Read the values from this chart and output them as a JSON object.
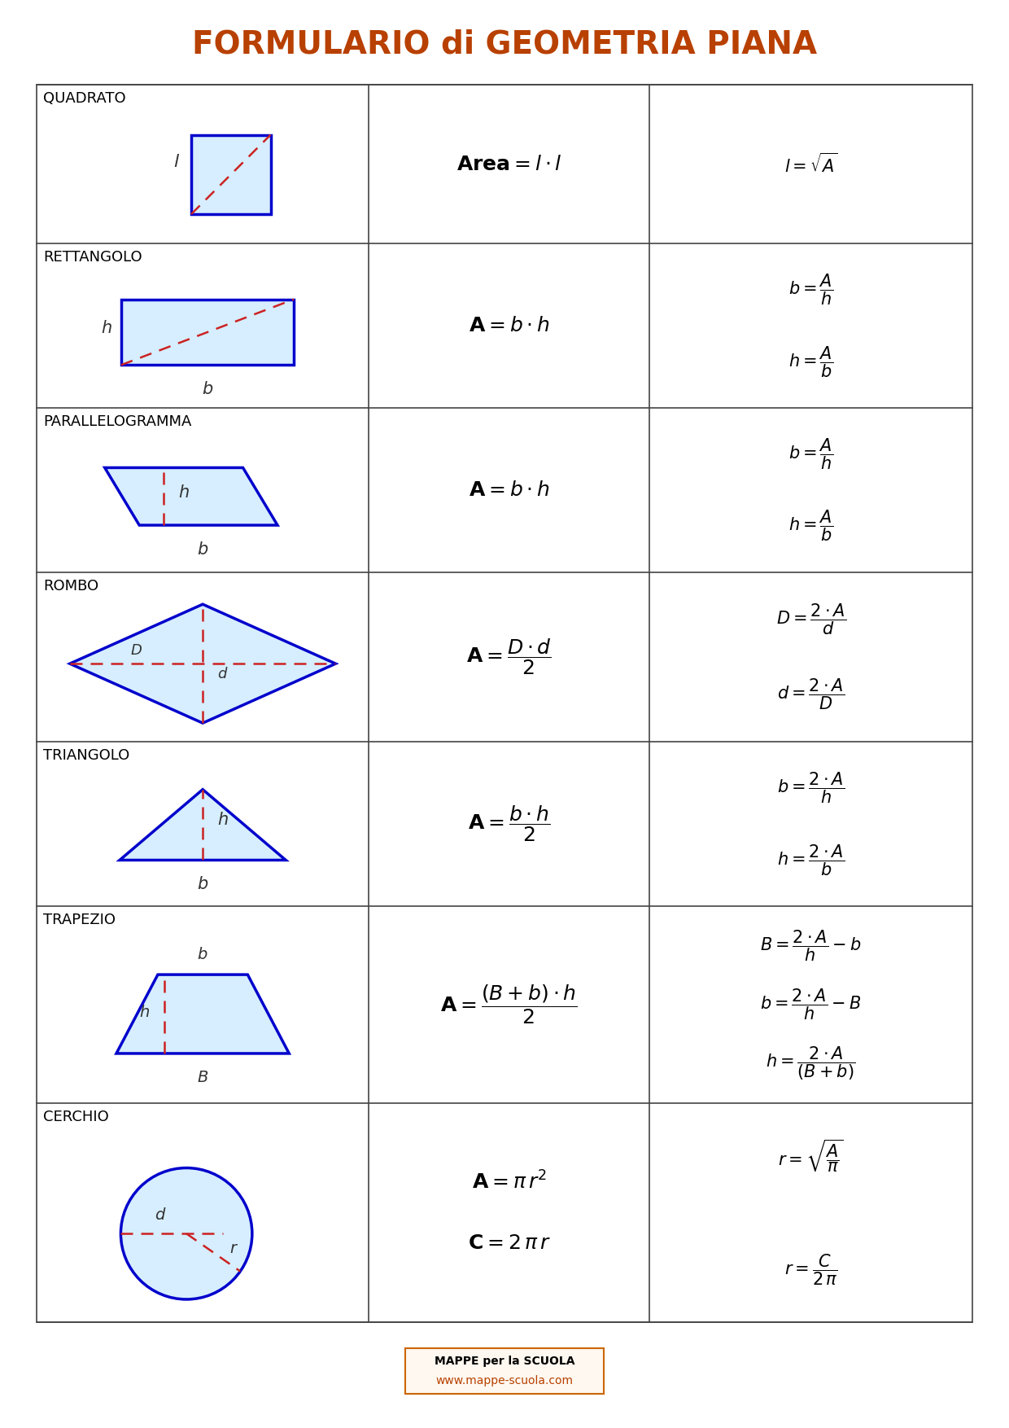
{
  "title": "FORMULARIO di GEOMETRIA PIANA",
  "title_color": "#B84000",
  "title_fontsize": 24,
  "bg_color": "#FFFFFF",
  "border_color": "#444444",
  "shape_border_color": "#0000CC",
  "shape_fill_color": "#D6EEFF",
  "dashed_color": "#CC2222",
  "text_color": "#000000",
  "rows": [
    {
      "name": "QUADRATO",
      "shape": "square"
    },
    {
      "name": "RETTANGOLO",
      "shape": "rectangle"
    },
    {
      "name": "PARALLELOGRAMMA",
      "shape": "parallelogram"
    },
    {
      "name": "ROMBO",
      "shape": "rhombus"
    },
    {
      "name": "TRIANGOLO",
      "shape": "triangle"
    },
    {
      "name": "TRAPEZIO",
      "shape": "trapezoid"
    },
    {
      "name": "CERCHIO",
      "shape": "circle"
    }
  ],
  "footer_border": "#CC6600",
  "footer_bg": "#FFF8F0"
}
